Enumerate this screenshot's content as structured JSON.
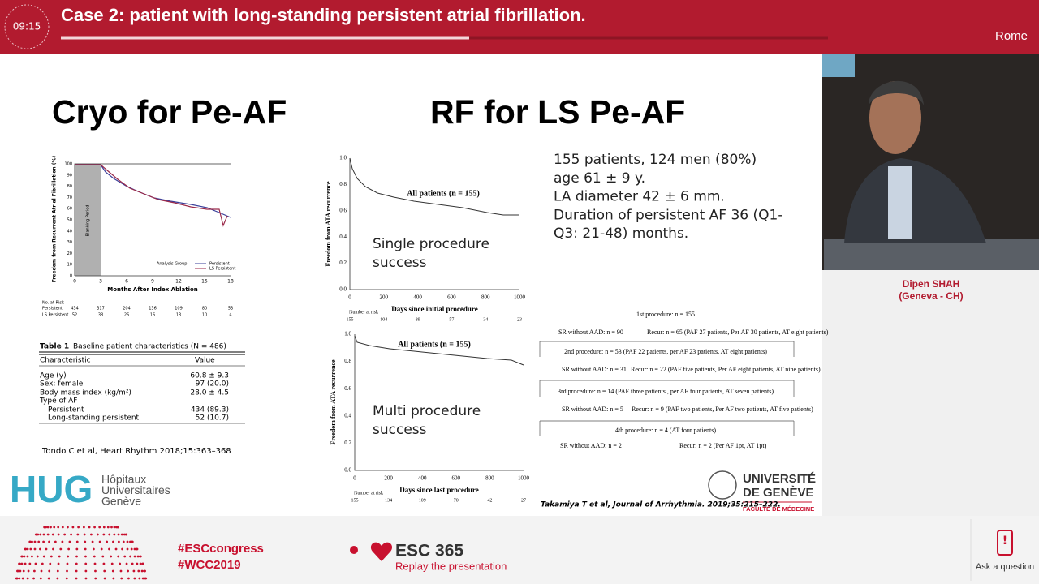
{
  "header": {
    "time": "09:15",
    "title": "Case 2: patient with long-standing persistent atrial fibrillation.",
    "location": "Rome"
  },
  "slide": {
    "left_title": "Cryo for Pe-AF",
    "right_title": "RF for LS Pe-AF",
    "cryo_plot": {
      "y_label": "Freedom from Recurrent Atrial Fibrillation (%)",
      "yticks": [
        "100",
        "90",
        "80",
        "70",
        "60",
        "50",
        "40",
        "30",
        "20",
        "10",
        "0"
      ],
      "xticks": [
        "0",
        "3",
        "6",
        "9",
        "12",
        "15",
        "18"
      ],
      "x_label": "Months After Index Ablation",
      "blanking": "Blanking Period",
      "legend_title": "Analysis Group",
      "legend": [
        "Persistent",
        "LS Persistent"
      ],
      "risk_title": "No. at Risk",
      "risk_rows": [
        [
          "Persistent",
          "434",
          "317",
          "204",
          "136",
          "109",
          "80",
          "53"
        ],
        [
          "LS Persistent",
          "52",
          "38",
          "26",
          "16",
          "13",
          "10",
          "4"
        ]
      ]
    },
    "table": {
      "label": "Table 1",
      "caption": "Baseline patient characteristics (N = 486)",
      "headers": [
        "Characteristic",
        "Value"
      ],
      "rows": [
        {
          "label": "Age (y)",
          "value": "60.8 ± 9.3"
        },
        {
          "label": "Sex: female",
          "value": "97 (20.0)"
        },
        {
          "label": "Body mass index (kg/m²)",
          "value": "28.0 ± 4.5"
        },
        {
          "label": "Type of AF"
        },
        {
          "label": "Persistent",
          "value": "434 (89.3)"
        },
        {
          "label": "Long-standing persistent",
          "value": "52 (10.7)"
        }
      ]
    },
    "left_reference": "Tondo C et al, Heart Rhythm 2018;15:363–368",
    "hug_logo": {
      "mark": "HUG",
      "lines": [
        "Hôpitaux",
        "Universitaires",
        "Genève"
      ]
    },
    "rf_plots": [
      {
        "y_label": "Freedom from ATA recurrence",
        "yticks": [
          "1.0",
          "0.8",
          "0.6",
          "0.4",
          "0.2",
          "0.0"
        ],
        "xticks": [
          "0",
          "200",
          "400",
          "600",
          "800",
          "1000"
        ],
        "x_label": "Days since initial procedure",
        "annotation": "All patients (n = 155)",
        "risk_title": "Number at risk",
        "risk": [
          "155",
          "104",
          "89",
          "57",
          "34",
          "23"
        ],
        "overlay": [
          "Single procedure",
          "success"
        ]
      },
      {
        "y_label": "Freedom from ATA recurrence",
        "yticks": [
          "1.0",
          "0.8",
          "0.6",
          "0.4",
          "0.2",
          "0.0"
        ],
        "xticks": [
          "0",
          "200",
          "400",
          "600",
          "800",
          "1000"
        ],
        "x_label": "Days since last procedure",
        "annotation": "All patients (n = 155)",
        "risk_title": "Number at risk",
        "risk": [
          "155",
          "134",
          "109",
          "70",
          "42",
          "27"
        ],
        "overlay": [
          "Multi procedure",
          "success"
        ]
      }
    ],
    "bullets": [
      "155 patients, 124 men (80%)",
      "age 61 ± 9 y.",
      "LA diameter 42 ± 6 mm.",
      "Duration of persistent AF 36 (Q1-",
      "Q3: 21-48) months."
    ],
    "flowchart": {
      "step1": "1st procedure: n = 155",
      "sr1": "SR without AAD: n = 90",
      "recur1": "Recur: n = 65 (PAF 27 patients, Per AF 30 patients, AT eight patients)",
      "step2": "2nd procedure: n = 53 (PAF 22 patients, per AF 23 patients, AT eight patients)",
      "sr2": "SR without AAD: n = 31",
      "recur2": "Recur: n = 22 (PAF five patients, Per AF eight patients, AT nine patients)",
      "step3": "3rd procedure: n = 14 (PAF three patients , per AF four patients, AT seven patients)",
      "sr3": "SR without AAD: n = 5",
      "recur3": "Recur: n = 9 (PAF two patients, Per AF two patients, AT five patients)",
      "step4": "4th procedure: n = 4 (AT four patients)",
      "sr4": "SR without AAD: n = 2",
      "recur4": "Recur: n = 2 (Per AF 1pt, AT 1pt)"
    },
    "right_reference": "Takamiya T et al, Journal of Arrhythmia. 2019;35:215–222.",
    "unige_logo": {
      "line1": "UNIVERSITÉ",
      "line2": "DE GENÈVE",
      "faculty": "FACULTÉ DE MÉDECINE"
    }
  },
  "speaker": {
    "name": "Dipen SHAH",
    "affiliation": "(Geneva - CH)"
  },
  "footer": {
    "hashtags": [
      "#ESCcongress",
      "#WCC2019"
    ],
    "brand": "ESC 365",
    "replay": "Replay the presentation",
    "ask": "Ask a question"
  }
}
